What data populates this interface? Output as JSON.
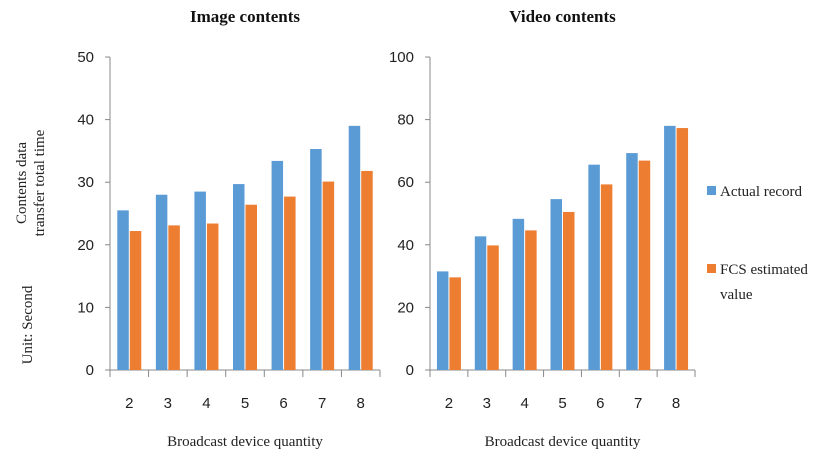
{
  "y_axis_label": [
    "Contents data",
    "transfer total time"
  ],
  "unit_label": "Unit: Second",
  "legend": {
    "placement": "right",
    "items": [
      {
        "lines": [
          "Actual record"
        ],
        "color": "#5B9BD5"
      },
      {
        "lines": [
          "FCS estimated",
          "value"
        ],
        "color": "#ED7D31"
      }
    ]
  },
  "chart_data": [
    {
      "type": "bar",
      "title": "Image contents",
      "xlabel": "Broadcast device quantity",
      "categories": [
        "2",
        "3",
        "4",
        "5",
        "6",
        "7",
        "8"
      ],
      "ylim": [
        0,
        50
      ],
      "yticks": [
        0,
        10,
        20,
        30,
        40,
        50
      ],
      "grid": false,
      "series": [
        {
          "name": "Actual record",
          "color": "#5B9BD5",
          "values": [
            25.5,
            28,
            28.5,
            29.7,
            33.4,
            35.3,
            39
          ]
        },
        {
          "name": "FCS estimated value",
          "color": "#ED7D31",
          "values": [
            22.2,
            23.1,
            23.4,
            26.4,
            27.7,
            30.1,
            31.8
          ]
        }
      ]
    },
    {
      "type": "bar",
      "title": "Video contents",
      "xlabel": "Broadcast device quantity",
      "categories": [
        "2",
        "3",
        "4",
        "5",
        "6",
        "7",
        "8"
      ],
      "ylim": [
        0,
        100
      ],
      "yticks": [
        0,
        20,
        40,
        60,
        80,
        100
      ],
      "grid": false,
      "series": [
        {
          "name": "Actual record",
          "color": "#5B9BD5",
          "values": [
            31.5,
            42.7,
            48.3,
            54.6,
            65.6,
            69.3,
            78
          ]
        },
        {
          "name": "FCS estimated value",
          "color": "#ED7D31",
          "values": [
            29.6,
            39.8,
            44.6,
            50.5,
            59.3,
            66.9,
            77.3
          ]
        }
      ]
    }
  ]
}
